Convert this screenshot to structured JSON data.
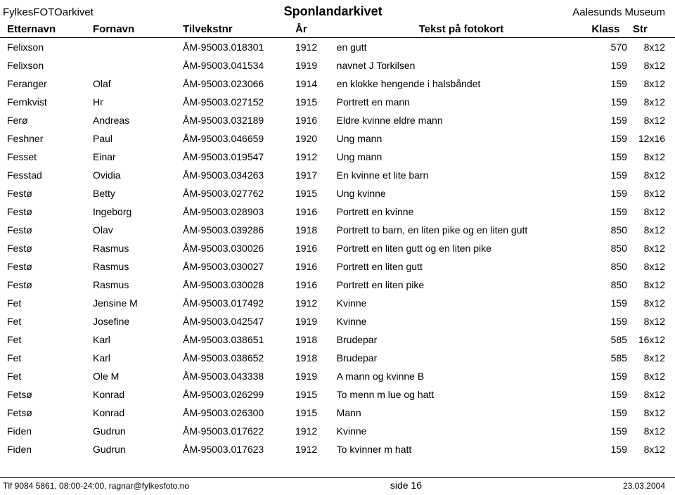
{
  "header": {
    "left": "FylkesFOTOarkivet",
    "center": "Sponlandarkivet",
    "right": "Aalesunds Museum"
  },
  "columns": {
    "etternavn": "Etternavn",
    "fornavn": "Fornavn",
    "tilvekst": "Tilvekstnr",
    "ar": "År",
    "tekst": "Tekst på fotokort",
    "klass": "Klass",
    "str": "Str"
  },
  "rows": [
    {
      "etternavn": "Felixson",
      "fornavn": "",
      "tilvekst": "ÅM-95003.018301",
      "ar": "1912",
      "tekst": "en gutt",
      "klass": "570",
      "str": "8x12"
    },
    {
      "etternavn": "Felixson",
      "fornavn": "",
      "tilvekst": "ÅM-95003.041534",
      "ar": "1919",
      "tekst": "navnet J Torkilsen",
      "klass": "159",
      "str": "8x12"
    },
    {
      "etternavn": "Feranger",
      "fornavn": "Olaf",
      "tilvekst": "ÅM-95003.023066",
      "ar": "1914",
      "tekst": "en klokke hengende i halsbåndet",
      "klass": "159",
      "str": "8x12"
    },
    {
      "etternavn": "Fernkvist",
      "fornavn": "Hr",
      "tilvekst": "ÅM-95003.027152",
      "ar": "1915",
      "tekst": "Portrett en mann",
      "klass": "159",
      "str": "8x12"
    },
    {
      "etternavn": "Ferø",
      "fornavn": "Andreas",
      "tilvekst": "ÅM-95003.032189",
      "ar": "1916",
      "tekst": "Eldre kvinne eldre mann",
      "klass": "159",
      "str": "8x12"
    },
    {
      "etternavn": "Feshner",
      "fornavn": "Paul",
      "tilvekst": "ÅM-95003.046659",
      "ar": "1920",
      "tekst": "Ung mann",
      "klass": "159",
      "str": "12x16"
    },
    {
      "etternavn": "Fesset",
      "fornavn": "Einar",
      "tilvekst": "ÅM-95003.019547",
      "ar": "1912",
      "tekst": "Ung mann",
      "klass": "159",
      "str": "8x12"
    },
    {
      "etternavn": "Fesstad",
      "fornavn": "Ovidia",
      "tilvekst": "ÅM-95003.034263",
      "ar": "1917",
      "tekst": "En kvinne et lite barn",
      "klass": "159",
      "str": "8x12"
    },
    {
      "etternavn": "Festø",
      "fornavn": "Betty",
      "tilvekst": "ÅM-95003.027762",
      "ar": "1915",
      "tekst": "Ung kvinne",
      "klass": "159",
      "str": "8x12"
    },
    {
      "etternavn": "Festø",
      "fornavn": "Ingeborg",
      "tilvekst": "ÅM-95003.028903",
      "ar": "1916",
      "tekst": "Portrett en kvinne",
      "klass": "159",
      "str": "8x12"
    },
    {
      "etternavn": "Festø",
      "fornavn": "Olav",
      "tilvekst": "ÅM-95003.039286",
      "ar": "1918",
      "tekst": "Portrett to barn, en liten pike og en liten gutt",
      "klass": "850",
      "str": "8x12"
    },
    {
      "etternavn": "Festø",
      "fornavn": "Rasmus",
      "tilvekst": "ÅM-95003.030026",
      "ar": "1916",
      "tekst": "Portrett en liten gutt og en liten pike",
      "klass": "850",
      "str": "8x12"
    },
    {
      "etternavn": "Festø",
      "fornavn": "Rasmus",
      "tilvekst": "ÅM-95003.030027",
      "ar": "1916",
      "tekst": "Portrett en liten gutt",
      "klass": "850",
      "str": "8x12"
    },
    {
      "etternavn": "Festø",
      "fornavn": "Rasmus",
      "tilvekst": "ÅM-95003.030028",
      "ar": "1916",
      "tekst": "Portrett en liten pike",
      "klass": "850",
      "str": "8x12"
    },
    {
      "etternavn": "Fet",
      "fornavn": "Jensine M",
      "tilvekst": "ÅM-95003.017492",
      "ar": "1912",
      "tekst": "Kvinne",
      "klass": "159",
      "str": "8x12"
    },
    {
      "etternavn": "Fet",
      "fornavn": "Josefine",
      "tilvekst": "ÅM-95003.042547",
      "ar": "1919",
      "tekst": "Kvinne",
      "klass": "159",
      "str": "8x12"
    },
    {
      "etternavn": "Fet",
      "fornavn": "Karl",
      "tilvekst": "ÅM-95003.038651",
      "ar": "1918",
      "tekst": "Brudepar",
      "klass": "585",
      "str": "16x12"
    },
    {
      "etternavn": "Fet",
      "fornavn": "Karl",
      "tilvekst": "ÅM-95003.038652",
      "ar": "1918",
      "tekst": "Brudepar",
      "klass": "585",
      "str": "8x12"
    },
    {
      "etternavn": "Fet",
      "fornavn": "Ole M",
      "tilvekst": "ÅM-95003.043338",
      "ar": "1919",
      "tekst": "A mann og kvinne B",
      "klass": "159",
      "str": "8x12"
    },
    {
      "etternavn": "Fetsø",
      "fornavn": "Konrad",
      "tilvekst": "ÅM-95003.026299",
      "ar": "1915",
      "tekst": "To menn m lue og hatt",
      "klass": "159",
      "str": "8x12"
    },
    {
      "etternavn": "Fetsø",
      "fornavn": "Konrad",
      "tilvekst": "ÅM-95003.026300",
      "ar": "1915",
      "tekst": "Mann",
      "klass": "159",
      "str": "8x12"
    },
    {
      "etternavn": "Fiden",
      "fornavn": "Gudrun",
      "tilvekst": "ÅM-95003.017622",
      "ar": "1912",
      "tekst": "Kvinne",
      "klass": "159",
      "str": "8x12"
    },
    {
      "etternavn": "Fiden",
      "fornavn": "Gudrun",
      "tilvekst": "ÅM-95003.017623",
      "ar": "1912",
      "tekst": "To kvinner m hatt",
      "klass": "159",
      "str": "8x12"
    }
  ],
  "footer": {
    "left": "Tlf 9084 5861, 08:00-24:00, ragnar@fylkesfoto.no",
    "center": "side  16",
    "right": "23.03.2004"
  }
}
